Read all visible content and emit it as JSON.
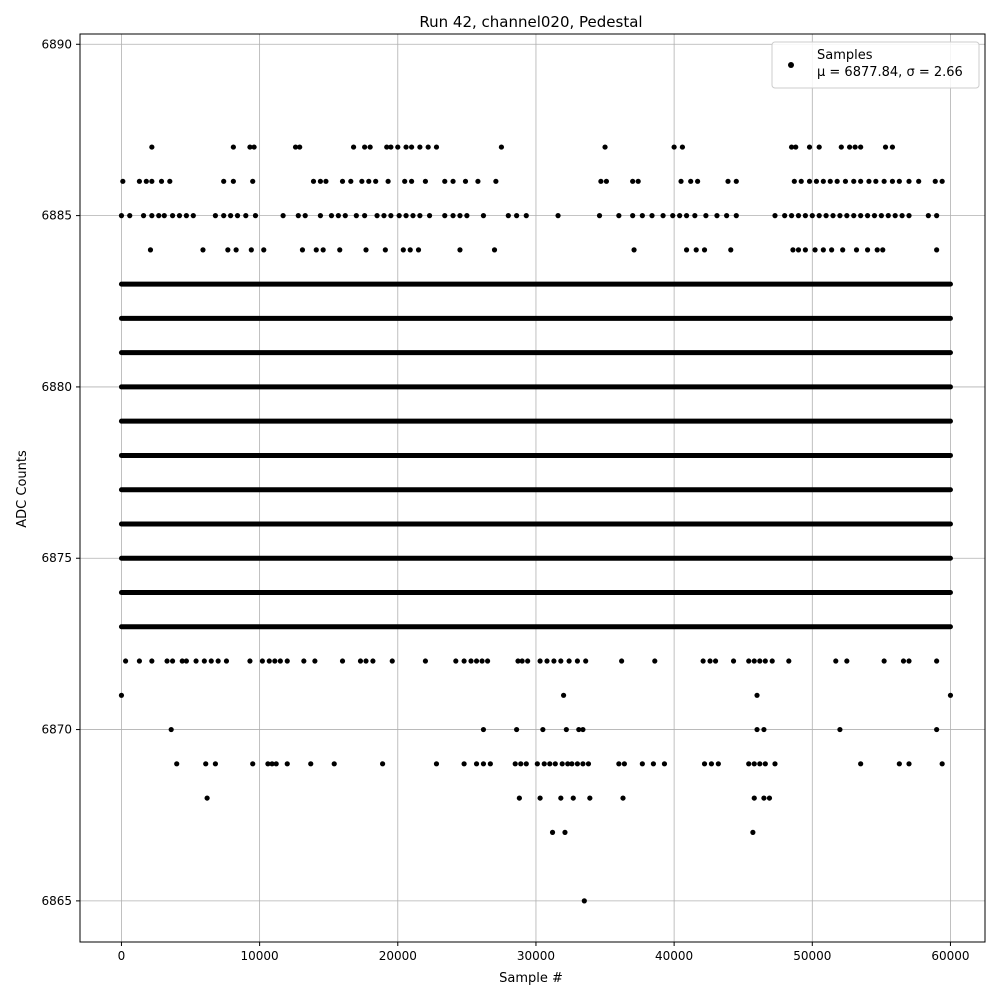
{
  "chart_data": {
    "type": "scatter",
    "title": "Run 42, channel020, Pedestal",
    "xlabel": "Sample #",
    "ylabel": "ADC Counts",
    "xlim": [
      -3000,
      62500
    ],
    "ylim": [
      6863.8,
      6890.3
    ],
    "xticks": [
      0,
      10000,
      20000,
      30000,
      40000,
      50000,
      60000
    ],
    "yticks": [
      6865,
      6870,
      6875,
      6880,
      6885,
      6890
    ],
    "grid": true,
    "legend": {
      "position": "top-right",
      "entries": [
        {
          "label": "Samples",
          "sublabel": "μ = 6877.84, σ = 2.66"
        }
      ]
    },
    "marker_color": "#000000",
    "series": [
      {
        "name": "Samples",
        "levels": [
          {
            "y": 6865,
            "x": [
              33500
            ]
          },
          {
            "y": 6867,
            "x": [
              31200,
              32100,
              45700
            ]
          },
          {
            "y": 6868,
            "x": [
              6200,
              28800,
              30300,
              31800,
              32700,
              33900,
              36300,
              45800,
              46500,
              46900
            ]
          },
          {
            "y": 6869,
            "x": [
              4000,
              6100,
              6800,
              9500,
              10600,
              10900,
              11200,
              12000,
              13700,
              15400,
              18900,
              22800,
              24800,
              25700,
              26200,
              26700,
              28500,
              28900,
              29300,
              30100,
              30600,
              31000,
              31400,
              31900,
              32300,
              32600,
              33000,
              33400,
              33800,
              36000,
              36400,
              37700,
              38500,
              39300,
              42200,
              42700,
              43200,
              45400,
              45800,
              46200,
              46600,
              47300,
              53500,
              56300,
              57000,
              59400
            ]
          },
          {
            "y": 6870,
            "x": [
              3600,
              26200,
              28600,
              30500,
              32200,
              33100,
              33400,
              46000,
              46500,
              52000,
              59000
            ]
          },
          {
            "y": 6871,
            "x": [
              0,
              60000,
              32000,
              46000
            ]
          },
          {
            "y": 6872,
            "x": [
              300,
              1300,
              2200,
              3300,
              3700,
              4400,
              4700,
              5400,
              6000,
              6500,
              7000,
              7600,
              9300,
              10200,
              10700,
              11100,
              11500,
              12000,
              13200,
              14000,
              16000,
              17300,
              17700,
              18200,
              19600,
              22000,
              24200,
              24800,
              25300,
              25700,
              26100,
              26500,
              28700,
              29000,
              29400,
              30300,
              30800,
              31300,
              31800,
              32400,
              33000,
              33600,
              36200,
              38600,
              42100,
              42600,
              43000,
              44300,
              45400,
              45800,
              46200,
              46600,
              47100,
              48300,
              51700,
              52500,
              55200,
              56600,
              57000,
              59000
            ]
          },
          {
            "y": 6873,
            "x": [
              0,
              60000
            ]
          },
          {
            "y": 6874,
            "x": [
              0,
              60000
            ]
          },
          {
            "y": 6875,
            "x": [
              0,
              60000
            ]
          },
          {
            "y": 6876,
            "x": [
              0,
              60000
            ]
          },
          {
            "y": 6877,
            "x": [
              0,
              60000
            ]
          },
          {
            "y": 6878,
            "x": [
              0,
              60000
            ]
          },
          {
            "y": 6879,
            "x": [
              0,
              60000
            ]
          },
          {
            "y": 6880,
            "x": [
              0,
              60000
            ]
          },
          {
            "y": 6881,
            "x": [
              0,
              60000
            ]
          },
          {
            "y": 6882,
            "x": [
              0,
              60000
            ]
          },
          {
            "y": 6883,
            "x": [
              0,
              60000
            ]
          },
          {
            "y": 6884,
            "x": [
              2100,
              5900,
              7700,
              8300,
              9400,
              10300,
              13100,
              14100,
              14600,
              15800,
              17700,
              19100,
              20400,
              20900,
              21500,
              24500,
              27000,
              37100,
              40900,
              41600,
              42200,
              44100,
              48600,
              49000,
              49500,
              50200,
              50800,
              51400,
              52200,
              53200,
              54000,
              54700,
              55100,
              59000
            ]
          },
          {
            "y": 6885,
            "x": [
              0,
              600,
              1600,
              2200,
              2700,
              3100,
              3700,
              4200,
              4700,
              5200,
              6800,
              7400,
              7900,
              8400,
              9000,
              9700,
              11700,
              12800,
              13300,
              14400,
              15200,
              15700,
              16200,
              17000,
              17600,
              18500,
              19000,
              19500,
              20100,
              20600,
              21100,
              21600,
              22300,
              23400,
              24000,
              24500,
              25000,
              26200,
              28000,
              28600,
              29300,
              31600,
              34600,
              36000,
              37000,
              37700,
              38400,
              39200,
              39900,
              40400,
              40900,
              41500,
              42300,
              43100,
              43800,
              44500,
              47300,
              48000,
              48500,
              49000,
              49500,
              50000,
              50500,
              51000,
              51500,
              52000,
              52500,
              53000,
              53500,
              54000,
              54500,
              55000,
              55500,
              56000,
              56500,
              57000,
              58400,
              59000
            ]
          },
          {
            "y": 6886,
            "x": [
              100,
              1300,
              1800,
              2200,
              2900,
              3500,
              7400,
              8100,
              9500,
              13900,
              14400,
              14800,
              16000,
              16600,
              17400,
              17900,
              18400,
              19300,
              20500,
              21000,
              22000,
              23400,
              24000,
              24900,
              25800,
              27100,
              34700,
              35100,
              37000,
              37400,
              40500,
              41200,
              41700,
              43900,
              44500,
              48700,
              49200,
              49800,
              50300,
              50800,
              51300,
              51800,
              52400,
              53000,
              53500,
              54100,
              54600,
              55200,
              55800,
              56300,
              57000,
              57700,
              58900,
              59400
            ]
          },
          {
            "y": 6887,
            "x": [
              2200,
              8100,
              9300,
              9600,
              12600,
              12900,
              16800,
              17600,
              18000,
              19200,
              19500,
              20000,
              20600,
              21000,
              21600,
              22200,
              22800,
              27500,
              35000,
              40000,
              40600,
              48500,
              48800,
              49800,
              50500,
              52100,
              52700,
              53100,
              53500,
              55300,
              55800
            ]
          }
        ]
      }
    ]
  }
}
